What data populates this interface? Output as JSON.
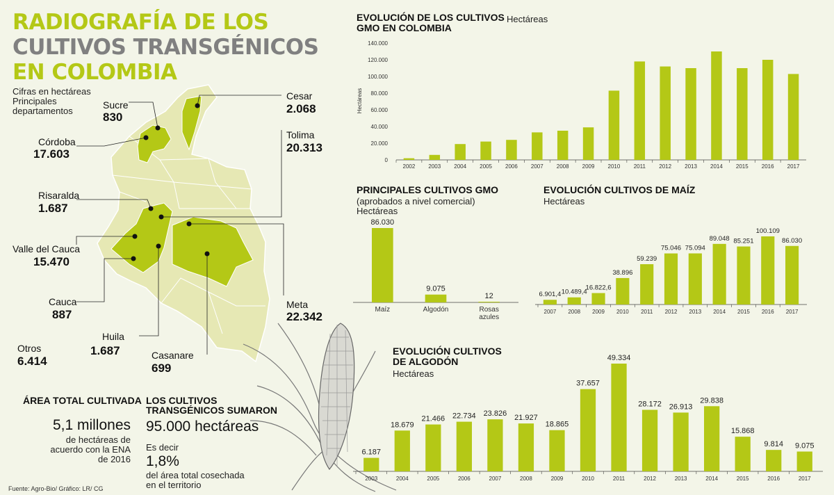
{
  "title": {
    "line1": "RADIOGRAFÍA DE LOS",
    "line2": "CULTIVOS TRANSGÉNICOS",
    "line3": "EN COLOMBIA"
  },
  "map": {
    "subtitle_line1": "Cifras en hectáreas",
    "subtitle_line2": "Principales",
    "subtitle_line3": "departamentos",
    "departments": [
      {
        "name": "Sucre",
        "value": "830"
      },
      {
        "name": "Córdoba",
        "value": "17.603"
      },
      {
        "name": "Risaralda",
        "value": "1.687"
      },
      {
        "name": "Valle del Cauca",
        "value": "15.470"
      },
      {
        "name": "Cauca",
        "value": "887"
      },
      {
        "name": "Huila",
        "value": "1.687"
      },
      {
        "name": "Otros",
        "value": "6.414"
      },
      {
        "name": "Casanare",
        "value": "699"
      },
      {
        "name": "Meta",
        "value": "22.342"
      },
      {
        "name": "Tolima",
        "value": "20.313"
      },
      {
        "name": "Cesar",
        "value": "2.068"
      }
    ]
  },
  "area_total": {
    "title": "ÁREA TOTAL CULTIVADA",
    "value": "5,1 millones",
    "desc_line1": "de hectáreas de",
    "desc_line2": "acuerdo con la ENA",
    "desc_line3": "de 2016"
  },
  "sumaron": {
    "title_line1": "LOS CULTIVOS",
    "title_line2": "TRANSGÉNICOS SUMARON",
    "value": "95.000 hectáreas",
    "es_decir_line1": "Es decir",
    "pct": "1,8%",
    "desc_line1": "del área total cosechada",
    "desc_line2": "en el territorio"
  },
  "source": "Fuente: Agro-Bio/ Gráfico: LR/ CG",
  "colors": {
    "accent": "#b4c816",
    "map_light": "#e6e8b4",
    "map_dark": "#b4c816",
    "background": "#f3f5e8"
  },
  "chart_data": [
    {
      "id": "gmo",
      "type": "bar",
      "title_line1": "EVOLUCIÓN DE LOS CULTIVOS",
      "title_line2": "GMO EN COLOMBIA",
      "unit": "Hectáreas",
      "ylabel": "Hectáreas",
      "ylim": [
        0,
        140000
      ],
      "yticks": [
        0,
        20000,
        40000,
        60000,
        80000,
        100000,
        120000,
        140000
      ],
      "ytick_labels": [
        "0",
        "20.000",
        "40.000",
        "60.000",
        "80.000",
        "100.000",
        "120.000",
        "140.000"
      ],
      "categories": [
        "2002",
        "2003",
        "2004",
        "2005",
        "2006",
        "2007",
        "2008",
        "2009",
        "2010",
        "2011",
        "2012",
        "2013",
        "2014",
        "2015",
        "2016",
        "2017"
      ],
      "values": [
        2000,
        6000,
        19000,
        22000,
        24000,
        33000,
        35000,
        39000,
        83000,
        118000,
        112000,
        110000,
        130000,
        110000,
        120000,
        103000
      ]
    },
    {
      "id": "principales",
      "type": "bar",
      "title": "PRINCIPALES CULTIVOS GMO",
      "subtitle": "(aprobados a nivel comercial)",
      "unit": "Hectáreas",
      "categories": [
        "Maíz",
        "Algodón",
        "Rosas azules"
      ],
      "values": [
        86030,
        9075,
        12
      ],
      "labels": [
        "86.030",
        "9.075",
        "12"
      ]
    },
    {
      "id": "maiz",
      "type": "bar",
      "title": "EVOLUCIÓN CULTIVOS DE MAÍZ",
      "unit": "Hectáreas",
      "categories": [
        "2007",
        "2008",
        "2009",
        "2010",
        "2011",
        "2012",
        "2013",
        "2014",
        "2015",
        "2016",
        "2017"
      ],
      "values": [
        6901.4,
        10489.4,
        16822.6,
        38896,
        59239,
        75046,
        75094,
        89048,
        85251,
        100109,
        86030
      ],
      "labels": [
        "6.901,4",
        "10.489,4",
        "16.822,6",
        "38.896",
        "59.239",
        "75.046",
        "75.094",
        "89.048",
        "85.251",
        "100.109",
        "86.030"
      ]
    },
    {
      "id": "algodon",
      "type": "bar",
      "title_line1": "EVOLUCIÓN CULTIVOS",
      "title_line2": "DE ALGODÓN",
      "unit": "Hectáreas",
      "categories": [
        "2003",
        "2004",
        "2005",
        "2006",
        "2007",
        "2008",
        "2009",
        "2010",
        "2011",
        "2012",
        "2013",
        "2014",
        "2015",
        "2016",
        "2017"
      ],
      "values": [
        6187,
        18679,
        21466,
        22734,
        23826,
        21927,
        18865,
        37657,
        49334,
        28172,
        26913,
        29838,
        15868,
        9814,
        9075
      ],
      "labels": [
        "6.187",
        "18.679",
        "21.466",
        "22.734",
        "23.826",
        "21.927",
        "18.865",
        "37.657",
        "49.334",
        "28.172",
        "26.913",
        "29.838",
        "15.868",
        "9.814",
        "9.075"
      ]
    }
  ]
}
